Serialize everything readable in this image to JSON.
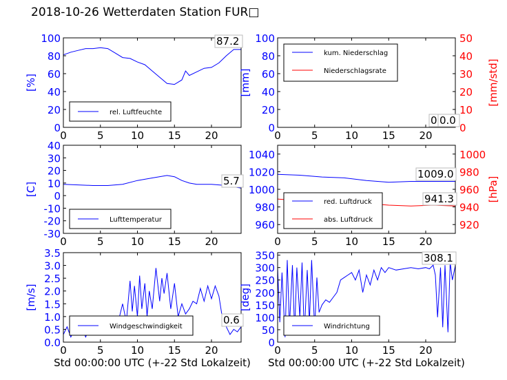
{
  "figure": {
    "title": "2018-10-26 Wetterdaten Station FUR□",
    "xlabel": "Std 00:00:00 UTC (+-22 Std Lokalzeit)"
  },
  "colors": {
    "blue": "#0000ff",
    "red": "#ff0000",
    "black": "#000000"
  },
  "chart_data": [
    {
      "type": "line",
      "panel": "top-left",
      "ylabel": "[%]",
      "xlim": [
        0,
        24
      ],
      "ylim": [
        0,
        100
      ],
      "xticks": [
        0,
        5,
        10,
        15,
        20
      ],
      "yticks": [
        0,
        20,
        40,
        60,
        80,
        100
      ],
      "annotation": "87.2",
      "legend": [
        "rel. Luftfeuchte"
      ],
      "series": [
        {
          "name": "rel. Luftfeuchte",
          "color": "#0000ff",
          "x": [
            0,
            1,
            2,
            3,
            4,
            5,
            6,
            7,
            8,
            9,
            10,
            11,
            12,
            13,
            14,
            15,
            16,
            16.5,
            17,
            18,
            19,
            20,
            21,
            22,
            23,
            24
          ],
          "y": [
            81,
            84,
            86,
            88,
            88,
            89,
            88,
            83,
            78,
            77,
            73,
            70,
            63,
            56,
            49,
            48,
            53,
            63,
            58,
            62,
            66,
            67,
            72,
            80,
            87,
            87
          ]
        }
      ]
    },
    {
      "type": "line",
      "panel": "top-right",
      "ylabel": "[mm]",
      "ylabel2": "[mm/std]",
      "xlim": [
        0,
        24
      ],
      "ylim": [
        0,
        100
      ],
      "ylim2": [
        0,
        50
      ],
      "xticks": [
        0,
        5,
        10,
        15,
        20
      ],
      "yticks": [
        0,
        20,
        40,
        60,
        80,
        100
      ],
      "yticks2": [
        0,
        10,
        20,
        30,
        40,
        50
      ],
      "annotation": "0.0",
      "annotation2": "0.0",
      "legend": [
        "kum. Niederschlag",
        "Niederschlagsrate"
      ],
      "series": [
        {
          "name": "kum. Niederschlag",
          "color": "#0000ff",
          "x": [
            0,
            24
          ],
          "y": [
            0,
            0
          ]
        },
        {
          "name": "Niederschlagsrate",
          "color": "#ff0000",
          "x": [
            0,
            24
          ],
          "y": [
            0,
            0
          ]
        }
      ]
    },
    {
      "type": "line",
      "panel": "middle-left",
      "ylabel": "[C]",
      "xlim": [
        0,
        24
      ],
      "ylim": [
        -30,
        40
      ],
      "xticks": [
        0,
        5,
        10,
        15,
        20
      ],
      "yticks": [
        -30,
        -20,
        -10,
        0,
        10,
        20,
        30,
        40
      ],
      "annotation": "5.7",
      "legend": [
        "Lufttemperatur"
      ],
      "series": [
        {
          "name": "Lufttemperatur",
          "color": "#0000ff",
          "x": [
            0,
            2,
            4,
            6,
            8,
            10,
            12,
            14,
            15,
            16,
            17,
            18,
            20,
            22,
            24
          ],
          "y": [
            9,
            8.5,
            8,
            8,
            9,
            12,
            14,
            16,
            15,
            12,
            10,
            9,
            9,
            8,
            6
          ]
        }
      ]
    },
    {
      "type": "line",
      "panel": "middle-right",
      "ylabel2": "[hPa]",
      "xlim": [
        0,
        24
      ],
      "ylim": [
        950,
        1050
      ],
      "ylim2": [
        910,
        1010
      ],
      "xticks": [
        0,
        5,
        10,
        15,
        20
      ],
      "yticks": [
        960,
        980,
        1000,
        1020,
        1040
      ],
      "yticks2": [
        920,
        940,
        960,
        980,
        1000
      ],
      "annotation": "1009.0",
      "annotation2": "941.3",
      "legend": [
        "red. Luftdruck",
        "abs. Luftdruck"
      ],
      "series": [
        {
          "name": "red. Luftdruck",
          "color": "#0000ff",
          "x": [
            0,
            3,
            6,
            9,
            12,
            15,
            18,
            21,
            24
          ],
          "y": [
            1017,
            1016,
            1014,
            1013,
            1010,
            1008,
            1009,
            1009,
            1009
          ]
        },
        {
          "name": "abs. Luftdruck",
          "color": "#ff0000",
          "x": [
            0,
            3,
            6,
            9,
            12,
            15,
            18,
            21,
            24
          ],
          "y": [
            949,
            947,
            946,
            945,
            944,
            942,
            941,
            942,
            941
          ]
        }
      ]
    },
    {
      "type": "line",
      "panel": "bottom-left",
      "ylabel": "[m/s]",
      "xlim": [
        0,
        24
      ],
      "ylim": [
        0,
        3.5
      ],
      "xticks": [
        0,
        5,
        10,
        15,
        20
      ],
      "yticks": [
        0.0,
        0.5,
        1.0,
        1.5,
        2.0,
        2.5,
        3.0,
        3.5
      ],
      "annotation": "0.6",
      "legend": [
        "Windgeschwindigkeit"
      ],
      "series": [
        {
          "name": "Windgeschwindigkeit",
          "color": "#0000ff",
          "x": [
            0,
            0.5,
            1,
            1.5,
            2,
            2.5,
            3,
            3.5,
            4,
            4.5,
            5,
            5.5,
            6,
            6.5,
            7,
            7.5,
            8,
            8.5,
            9,
            9.3,
            9.6,
            10,
            10.3,
            10.6,
            11,
            11.3,
            11.6,
            12,
            12.5,
            13,
            13.3,
            13.6,
            14,
            14.5,
            15,
            15.5,
            16,
            16.5,
            17,
            17.5,
            18,
            18.5,
            19,
            19.5,
            20,
            20.5,
            21,
            21.5,
            22,
            22.5,
            23,
            23.5,
            24
          ],
          "y": [
            0.3,
            0.6,
            0.2,
            0.5,
            0.3,
            0.6,
            0.2,
            0.5,
            0.3,
            0.6,
            0.3,
            0.7,
            0.4,
            0.8,
            0.5,
            0.9,
            1.5,
            0.8,
            2.4,
            1.2,
            2.2,
            1.0,
            2.6,
            1.3,
            2.3,
            1.0,
            2.0,
            1.3,
            2.9,
            1.6,
            2.5,
            1.9,
            2.7,
            1.3,
            2.3,
            1.0,
            1.5,
            1.1,
            1.3,
            1.6,
            1.5,
            2.1,
            1.6,
            2.2,
            1.7,
            2.2,
            1.8,
            0.9,
            0.6,
            0.3,
            0.5,
            0.4,
            0.6
          ]
        }
      ]
    },
    {
      "type": "line",
      "panel": "bottom-right",
      "ylabel": "[deg]",
      "xlim": [
        0,
        24
      ],
      "ylim": [
        0,
        360
      ],
      "xticks": [
        0,
        5,
        10,
        15,
        20
      ],
      "yticks": [
        0,
        50,
        100,
        150,
        200,
        250,
        300,
        350
      ],
      "annotation": "308.1",
      "legend": [
        "Windrichtung"
      ],
      "series": [
        {
          "name": "Windrichtung",
          "color": "#0000ff",
          "x": [
            0,
            0.3,
            0.6,
            1,
            1.3,
            1.6,
            2,
            2.3,
            2.6,
            3,
            3.3,
            3.6,
            4,
            4.3,
            4.6,
            5,
            5.3,
            5.6,
            6,
            6.5,
            7,
            7.5,
            8,
            8.5,
            9,
            9.5,
            10,
            10.5,
            11,
            11.5,
            12,
            12.5,
            13,
            13.5,
            14,
            14.5,
            15,
            16,
            17,
            18,
            19,
            20,
            20.5,
            21,
            21.3,
            21.6,
            22,
            22.3,
            22.6,
            23,
            23.3,
            23.6,
            24
          ],
          "y": [
            300,
            80,
            280,
            20,
            330,
            60,
            310,
            40,
            300,
            100,
            320,
            30,
            290,
            80,
            330,
            50,
            260,
            120,
            150,
            170,
            160,
            180,
            200,
            250,
            260,
            270,
            280,
            250,
            290,
            200,
            270,
            230,
            290,
            250,
            300,
            280,
            300,
            290,
            295,
            300,
            295,
            300,
            295,
            310,
            270,
            100,
            300,
            60,
            310,
            40,
            320,
            250,
            308
          ]
        }
      ]
    }
  ]
}
